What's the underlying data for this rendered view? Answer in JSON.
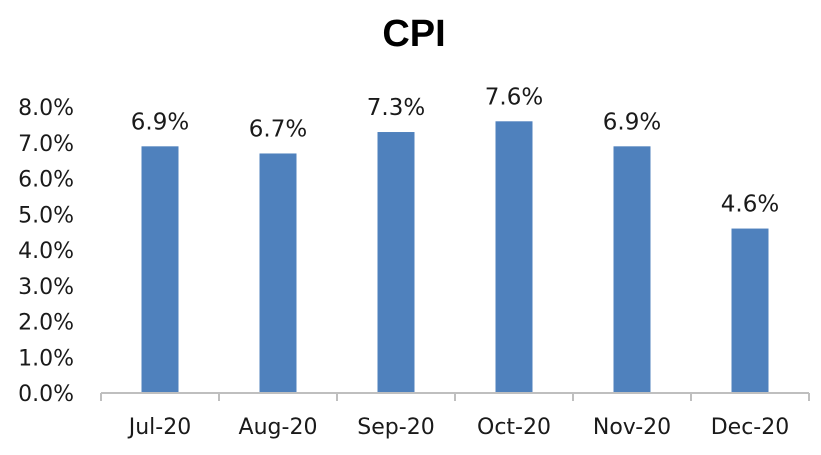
{
  "chart_data": {
    "type": "bar",
    "title": "CPI",
    "categories": [
      "Jul-20",
      "Aug-20",
      "Sep-20",
      "Oct-20",
      "Nov-20",
      "Dec-20"
    ],
    "values": [
      6.9,
      6.7,
      7.3,
      7.6,
      6.9,
      4.6
    ],
    "value_labels": [
      "6.9%",
      "6.7%",
      "7.3%",
      "7.6%",
      "6.9%",
      "4.6%"
    ],
    "y_ticks": [
      "0.0%",
      "1.0%",
      "2.0%",
      "3.0%",
      "4.0%",
      "5.0%",
      "6.0%",
      "7.0%",
      "8.0%"
    ],
    "ylim": [
      0,
      8
    ],
    "xlabel": "",
    "ylabel": "",
    "grid": false,
    "legend": "none",
    "bar_color": "#4F81BD"
  }
}
